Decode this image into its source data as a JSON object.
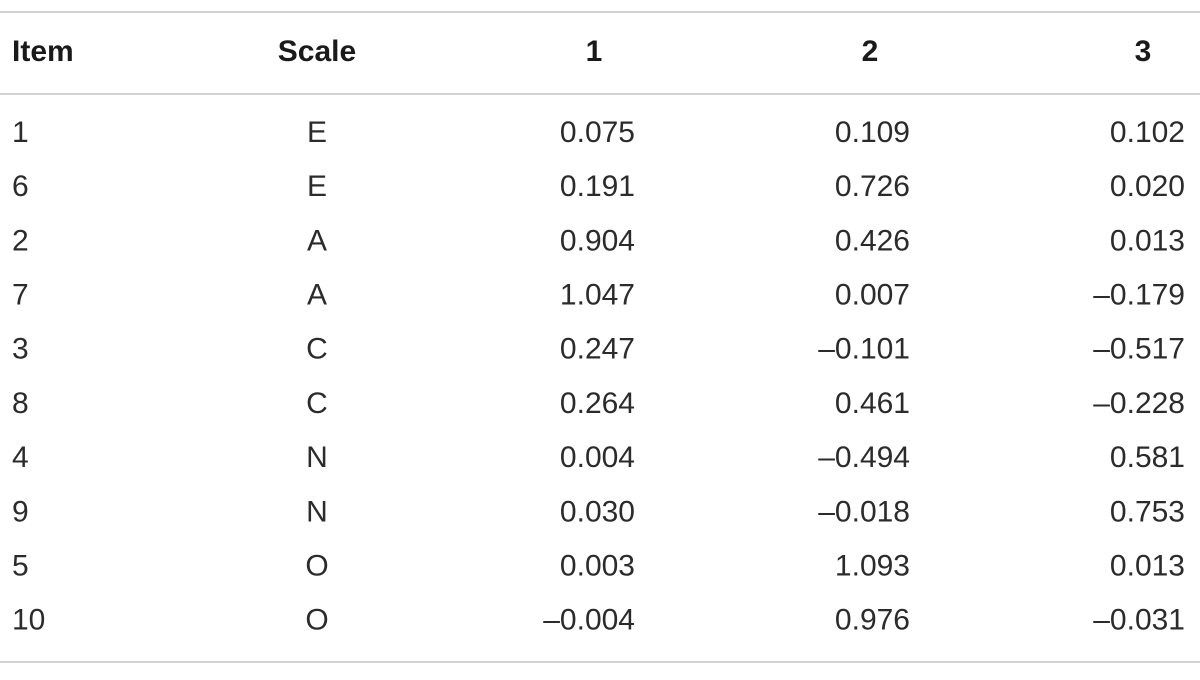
{
  "table": {
    "header": [
      "Item",
      "Scale",
      "1",
      "2",
      "3"
    ],
    "rows": [
      [
        "1",
        "E",
        "0.075",
        "0.109",
        "0.102"
      ],
      [
        "6",
        "E",
        "0.191",
        "0.726",
        "0.020"
      ],
      [
        "2",
        "A",
        "0.904",
        "0.426",
        "0.013"
      ],
      [
        "7",
        "A",
        "1.047",
        "0.007",
        "–0.179"
      ],
      [
        "3",
        "C",
        "0.247",
        "–0.101",
        "–0.517"
      ],
      [
        "8",
        "C",
        "0.264",
        "0.461",
        "–0.228"
      ],
      [
        "4",
        "N",
        "0.004",
        "–0.494",
        "0.581"
      ],
      [
        "9",
        "N",
        "0.030",
        "–0.018",
        "0.753"
      ],
      [
        "5",
        "O",
        "0.003",
        "1.093",
        "0.013"
      ],
      [
        "10",
        "O",
        "–0.004",
        "0.976",
        "–0.031"
      ]
    ]
  }
}
